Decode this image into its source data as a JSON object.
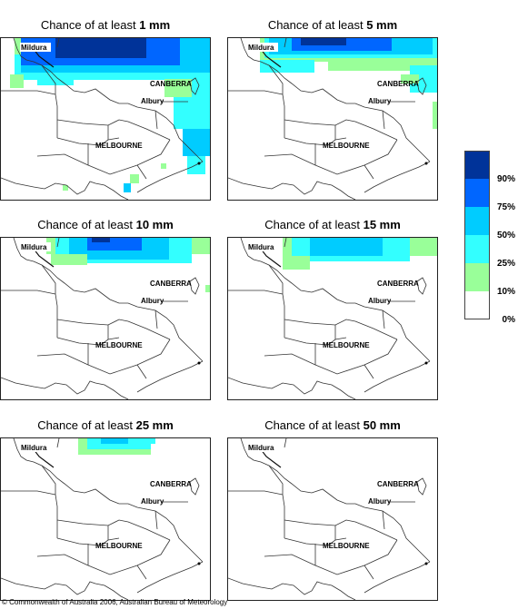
{
  "panels": [
    {
      "prefix": "Chance of at least ",
      "amount": "1 mm",
      "id": "1mm"
    },
    {
      "prefix": "Chance of at least ",
      "amount": "5 mm",
      "id": "5mm"
    },
    {
      "prefix": "Chance of at least ",
      "amount": "10 mm",
      "id": "10mm"
    },
    {
      "prefix": "Chance of at least ",
      "amount": "15 mm",
      "id": "15mm"
    },
    {
      "prefix": "Chance of at least ",
      "amount": "25 mm",
      "id": "25mm"
    },
    {
      "prefix": "Chance of at least ",
      "amount": "50 mm",
      "id": "50mm"
    }
  ],
  "cities": {
    "mildura": "Mildura",
    "canberra": "CANBERRA",
    "albury": "Albury",
    "melbourne": "MELBOURNE"
  },
  "legend": {
    "levels": [
      {
        "label": "90%",
        "color": "#003399"
      },
      {
        "label": "75%",
        "color": "#0066ff"
      },
      {
        "label": "50%",
        "color": "#00ccff"
      },
      {
        "label": "25%",
        "color": "#33ffff"
      },
      {
        "label": "10%",
        "color": "#99ff99"
      },
      {
        "label": "0%",
        "color": "#ffffff"
      }
    ]
  },
  "footer": "© Commonwealth of Australia 2006, Australian Bureau of Meteorology"
}
